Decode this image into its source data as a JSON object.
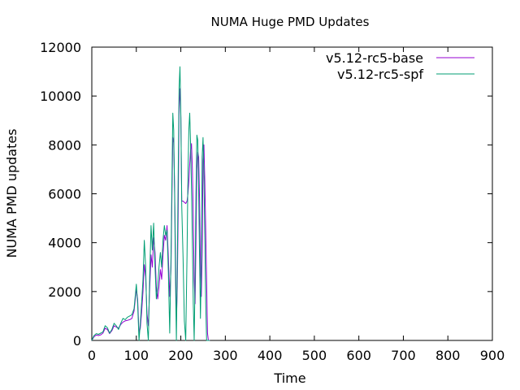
{
  "chart_data": {
    "type": "line",
    "title": "NUMA Huge PMD Updates",
    "xlabel": "Time",
    "ylabel": "NUMA PMD updates",
    "xlim": [
      0,
      900
    ],
    "ylim": [
      0,
      12000
    ],
    "x_ticks": [
      0,
      100,
      200,
      300,
      400,
      500,
      600,
      700,
      800,
      900
    ],
    "y_ticks": [
      0,
      2000,
      4000,
      6000,
      8000,
      10000,
      12000
    ],
    "grid": false,
    "legend_position": "top-right",
    "series": [
      {
        "name": "v5.12-rc5-base",
        "color": "#9400d3",
        "points": [
          [
            0,
            0
          ],
          [
            5,
            150
          ],
          [
            10,
            220
          ],
          [
            15,
            200
          ],
          [
            20,
            230
          ],
          [
            25,
            300
          ],
          [
            30,
            500
          ],
          [
            35,
            450
          ],
          [
            40,
            280
          ],
          [
            45,
            400
          ],
          [
            50,
            600
          ],
          [
            55,
            550
          ],
          [
            60,
            500
          ],
          [
            65,
            650
          ],
          [
            70,
            750
          ],
          [
            75,
            800
          ],
          [
            80,
            820
          ],
          [
            85,
            850
          ],
          [
            90,
            900
          ],
          [
            95,
            1200
          ],
          [
            100,
            2100
          ],
          [
            103,
            1700
          ],
          [
            106,
            300
          ],
          [
            109,
            500
          ],
          [
            112,
            1200
          ],
          [
            115,
            2000
          ],
          [
            118,
            3100
          ],
          [
            121,
            2600
          ],
          [
            124,
            1100
          ],
          [
            127,
            600
          ],
          [
            130,
            2100
          ],
          [
            133,
            3500
          ],
          [
            136,
            3000
          ],
          [
            139,
            4200
          ],
          [
            142,
            3600
          ],
          [
            145,
            2200
          ],
          [
            148,
            1700
          ],
          [
            151,
            2200
          ],
          [
            154,
            2900
          ],
          [
            157,
            2500
          ],
          [
            160,
            3500
          ],
          [
            163,
            4300
          ],
          [
            166,
            4100
          ],
          [
            169,
            4700
          ],
          [
            172,
            3400
          ],
          [
            175,
            1800
          ],
          [
            178,
            3000
          ],
          [
            180,
            5800
          ],
          [
            182,
            8300
          ],
          [
            184,
            8100
          ],
          [
            186,
            6300
          ],
          [
            188,
            3500
          ],
          [
            190,
            800
          ],
          [
            192,
            2200
          ],
          [
            194,
            5200
          ],
          [
            196,
            9500
          ],
          [
            198,
            10300
          ],
          [
            200,
            9100
          ],
          [
            202,
            5700
          ],
          [
            205,
            5700
          ],
          [
            208,
            5650
          ],
          [
            211,
            5600
          ],
          [
            214,
            5700
          ],
          [
            216,
            6000
          ],
          [
            218,
            6500
          ],
          [
            220,
            7200
          ],
          [
            222,
            7800
          ],
          [
            224,
            8050
          ],
          [
            226,
            7000
          ],
          [
            228,
            5000
          ],
          [
            230,
            2500
          ],
          [
            232,
            1500
          ],
          [
            234,
            4000
          ],
          [
            236,
            7000
          ],
          [
            238,
            7700
          ],
          [
            240,
            7500
          ],
          [
            242,
            5800
          ],
          [
            244,
            3000
          ],
          [
            246,
            1800
          ],
          [
            248,
            3500
          ],
          [
            250,
            7300
          ],
          [
            252,
            8000
          ],
          [
            254,
            6500
          ],
          [
            256,
            4500
          ],
          [
            258,
            2400
          ],
          [
            260,
            300
          ],
          [
            262,
            0
          ],
          [
            265,
            0
          ]
        ]
      },
      {
        "name": "v5.12-rc5-spf",
        "color": "#009e73",
        "points": [
          [
            0,
            0
          ],
          [
            5,
            200
          ],
          [
            10,
            280
          ],
          [
            15,
            250
          ],
          [
            20,
            300
          ],
          [
            25,
            350
          ],
          [
            30,
            600
          ],
          [
            35,
            520
          ],
          [
            40,
            300
          ],
          [
            45,
            450
          ],
          [
            50,
            700
          ],
          [
            55,
            600
          ],
          [
            60,
            450
          ],
          [
            65,
            700
          ],
          [
            70,
            900
          ],
          [
            75,
            850
          ],
          [
            80,
            950
          ],
          [
            85,
            1000
          ],
          [
            90,
            1050
          ],
          [
            95,
            1300
          ],
          [
            100,
            2300
          ],
          [
            103,
            1500
          ],
          [
            106,
            0
          ],
          [
            109,
            700
          ],
          [
            112,
            1600
          ],
          [
            115,
            2500
          ],
          [
            118,
            4100
          ],
          [
            121,
            3000
          ],
          [
            124,
            700
          ],
          [
            127,
            0
          ],
          [
            130,
            2600
          ],
          [
            133,
            4700
          ],
          [
            136,
            3700
          ],
          [
            139,
            4800
          ],
          [
            142,
            3000
          ],
          [
            145,
            1700
          ],
          [
            148,
            2200
          ],
          [
            151,
            3000
          ],
          [
            154,
            3600
          ],
          [
            157,
            3000
          ],
          [
            160,
            4100
          ],
          [
            163,
            4700
          ],
          [
            166,
            4300
          ],
          [
            169,
            4500
          ],
          [
            172,
            2800
          ],
          [
            175,
            300
          ],
          [
            178,
            3500
          ],
          [
            180,
            6500
          ],
          [
            182,
            9300
          ],
          [
            184,
            8600
          ],
          [
            186,
            6000
          ],
          [
            188,
            2500
          ],
          [
            190,
            0
          ],
          [
            192,
            3100
          ],
          [
            194,
            6700
          ],
          [
            196,
            10300
          ],
          [
            198,
            11200
          ],
          [
            200,
            9200
          ],
          [
            202,
            5500
          ],
          [
            205,
            3400
          ],
          [
            208,
            800
          ],
          [
            211,
            0
          ],
          [
            214,
            3500
          ],
          [
            216,
            6700
          ],
          [
            218,
            8600
          ],
          [
            220,
            9300
          ],
          [
            222,
            8000
          ],
          [
            224,
            6200
          ],
          [
            226,
            4000
          ],
          [
            228,
            1500
          ],
          [
            230,
            0
          ],
          [
            232,
            2500
          ],
          [
            234,
            6000
          ],
          [
            236,
            8400
          ],
          [
            238,
            8200
          ],
          [
            240,
            6200
          ],
          [
            242,
            3400
          ],
          [
            244,
            900
          ],
          [
            246,
            3200
          ],
          [
            248,
            7500
          ],
          [
            250,
            8300
          ],
          [
            252,
            6700
          ],
          [
            254,
            4200
          ],
          [
            256,
            1500
          ],
          [
            258,
            0
          ],
          [
            262,
            0
          ],
          [
            265,
            0
          ]
        ]
      }
    ]
  }
}
